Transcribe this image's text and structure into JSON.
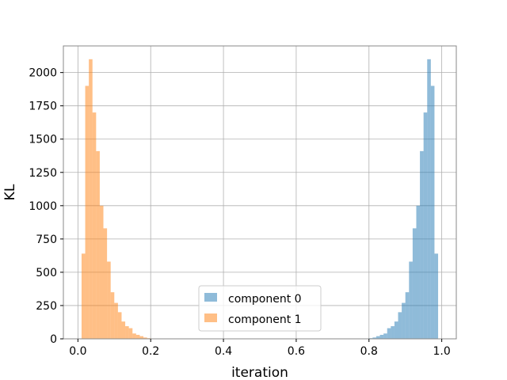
{
  "chart_data": {
    "type": "bar",
    "title": "",
    "xlabel": "iteration",
    "ylabel": "KL",
    "xlim": [
      -0.04,
      1.04
    ],
    "ylim": [
      0,
      2200
    ],
    "grid": true,
    "legend_placement": "bottom-center",
    "x_ticks": [
      0.0,
      0.2,
      0.4,
      0.6,
      0.8,
      1.0
    ],
    "x_tick_labels": [
      "0.0",
      "0.2",
      "0.4",
      "0.6",
      "0.8",
      "1.0"
    ],
    "y_ticks": [
      0,
      250,
      500,
      750,
      1000,
      1250,
      1500,
      1750,
      2000
    ],
    "y_tick_labels": [
      "0",
      "250",
      "500",
      "750",
      "1000",
      "1250",
      "1500",
      "1750",
      "2000"
    ],
    "bin_width": 0.01,
    "series": [
      {
        "name": "component 0",
        "color": "#1f77b4",
        "opacity": 0.5,
        "bin_starts": [
          0.8,
          0.81,
          0.82,
          0.83,
          0.84,
          0.85,
          0.86,
          0.87,
          0.88,
          0.89,
          0.9,
          0.91,
          0.92,
          0.93,
          0.94,
          0.95,
          0.96,
          0.97,
          0.98
        ],
        "values": [
          5,
          10,
          20,
          30,
          40,
          80,
          95,
          130,
          200,
          270,
          350,
          580,
          830,
          1000,
          1410,
          1700,
          2100,
          1900,
          640
        ]
      },
      {
        "name": "component 1",
        "color": "#ff7f0e",
        "opacity": 0.5,
        "bin_starts": [
          0.01,
          0.02,
          0.03,
          0.04,
          0.05,
          0.06,
          0.07,
          0.08,
          0.09,
          0.1,
          0.11,
          0.12,
          0.13,
          0.14,
          0.15,
          0.16,
          0.17,
          0.18,
          0.19
        ],
        "values": [
          640,
          1900,
          2100,
          1700,
          1410,
          1000,
          830,
          580,
          350,
          270,
          200,
          130,
          95,
          80,
          40,
          30,
          20,
          10,
          5
        ]
      }
    ]
  }
}
